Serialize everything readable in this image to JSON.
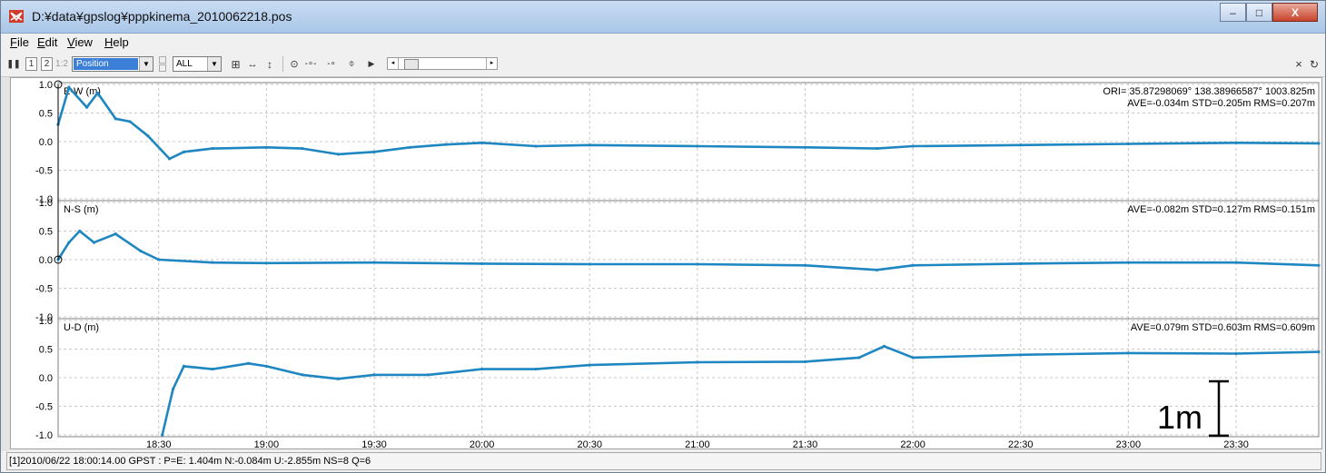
{
  "window": {
    "title": "D:¥data¥gpslog¥pppkinema_2010062218.pos",
    "minimize_glyph": "–",
    "maximize_glyph": "□",
    "close_glyph": "X"
  },
  "menu": {
    "items": [
      {
        "key": "F",
        "rest": "ile"
      },
      {
        "key": "E",
        "rest": "dit"
      },
      {
        "key": "V",
        "rest": "iew"
      },
      {
        "key": "H",
        "rest": "elp"
      }
    ]
  },
  "toolbar": {
    "plot_1": "1",
    "plot_2": "2",
    "plot_12": "1:2",
    "plot_type": "Position",
    "quality": "ALL",
    "right_icons": [
      "close-icon",
      "refresh-icon"
    ]
  },
  "plots": [
    {
      "label": "E-W (m)",
      "stats": "AVE=-0.034m STD=0.205m RMS=0.207m",
      "origin": "ORI= 35.87298069° 138.38966587° 1003.825m"
    },
    {
      "label": "N-S (m)",
      "stats": "AVE=-0.082m STD=0.127m RMS=0.151m"
    },
    {
      "label": "U-D (m)",
      "stats": "AVE=0.079m STD=0.603m RMS=0.609m"
    }
  ],
  "y_ticks": [
    "1.0",
    "0.5",
    "0.0",
    "-0.5",
    "-1.0"
  ],
  "x_ticks": [
    "18:30",
    "19:00",
    "19:30",
    "20:00",
    "20:30",
    "21:00",
    "21:30",
    "22:00",
    "22:30",
    "23:00",
    "23:30"
  ],
  "scale_annotation": "1m",
  "status_text": "[1]2010/06/22 18:00:14.00 GPST : P=E: 1.404m N:-0.084m U:-2.855m  NS=8 Q=6",
  "colors": {
    "series": "#1e86c1",
    "grid": "#c8c8c8",
    "title_bar": "#aac6e8"
  },
  "chart_data": {
    "type": "line",
    "x_unit": "GPST time (HH:MM, 2010/06/22)",
    "x_range": [
      "18:02",
      "23:53"
    ],
    "ylim": [
      -1.0,
      1.0
    ],
    "series": [
      {
        "name": "E-W (m)",
        "points": [
          [
            "18:02",
            0.3
          ],
          [
            "18:05",
            0.95
          ],
          [
            "18:10",
            0.6
          ],
          [
            "18:13",
            0.85
          ],
          [
            "18:18",
            0.4
          ],
          [
            "18:22",
            0.35
          ],
          [
            "18:27",
            0.1
          ],
          [
            "18:33",
            -0.3
          ],
          [
            "18:37",
            -0.18
          ],
          [
            "18:45",
            -0.12
          ],
          [
            "19:00",
            -0.1
          ],
          [
            "19:10",
            -0.12
          ],
          [
            "19:20",
            -0.22
          ],
          [
            "19:30",
            -0.18
          ],
          [
            "19:40",
            -0.1
          ],
          [
            "19:50",
            -0.05
          ],
          [
            "20:00",
            -0.02
          ],
          [
            "20:15",
            -0.08
          ],
          [
            "20:30",
            -0.06
          ],
          [
            "21:00",
            -0.08
          ],
          [
            "21:30",
            -0.1
          ],
          [
            "21:50",
            -0.12
          ],
          [
            "22:00",
            -0.08
          ],
          [
            "22:30",
            -0.06
          ],
          [
            "23:00",
            -0.04
          ],
          [
            "23:30",
            -0.02
          ],
          [
            "23:53",
            -0.03
          ]
        ]
      },
      {
        "name": "N-S (m)",
        "points": [
          [
            "18:02",
            0.0
          ],
          [
            "18:05",
            0.3
          ],
          [
            "18:08",
            0.5
          ],
          [
            "18:12",
            0.3
          ],
          [
            "18:18",
            0.45
          ],
          [
            "18:25",
            0.15
          ],
          [
            "18:30",
            0.0
          ],
          [
            "18:45",
            -0.05
          ],
          [
            "19:00",
            -0.06
          ],
          [
            "19:30",
            -0.05
          ],
          [
            "20:00",
            -0.07
          ],
          [
            "20:30",
            -0.08
          ],
          [
            "21:00",
            -0.08
          ],
          [
            "21:30",
            -0.1
          ],
          [
            "21:50",
            -0.18
          ],
          [
            "22:00",
            -0.1
          ],
          [
            "22:30",
            -0.07
          ],
          [
            "23:00",
            -0.05
          ],
          [
            "23:30",
            -0.05
          ],
          [
            "23:53",
            -0.1
          ]
        ]
      },
      {
        "name": "U-D (m)",
        "points": [
          [
            "18:31",
            -1.0
          ],
          [
            "18:34",
            -0.2
          ],
          [
            "18:37",
            0.2
          ],
          [
            "18:45",
            0.15
          ],
          [
            "18:55",
            0.25
          ],
          [
            "19:00",
            0.2
          ],
          [
            "19:10",
            0.05
          ],
          [
            "19:20",
            -0.02
          ],
          [
            "19:30",
            0.05
          ],
          [
            "19:45",
            0.05
          ],
          [
            "20:00",
            0.15
          ],
          [
            "20:15",
            0.15
          ],
          [
            "20:30",
            0.22
          ],
          [
            "21:00",
            0.27
          ],
          [
            "21:30",
            0.28
          ],
          [
            "21:45",
            0.35
          ],
          [
            "21:52",
            0.55
          ],
          [
            "22:00",
            0.35
          ],
          [
            "22:30",
            0.4
          ],
          [
            "23:00",
            0.43
          ],
          [
            "23:30",
            0.42
          ],
          [
            "23:53",
            0.45
          ]
        ]
      }
    ]
  }
}
